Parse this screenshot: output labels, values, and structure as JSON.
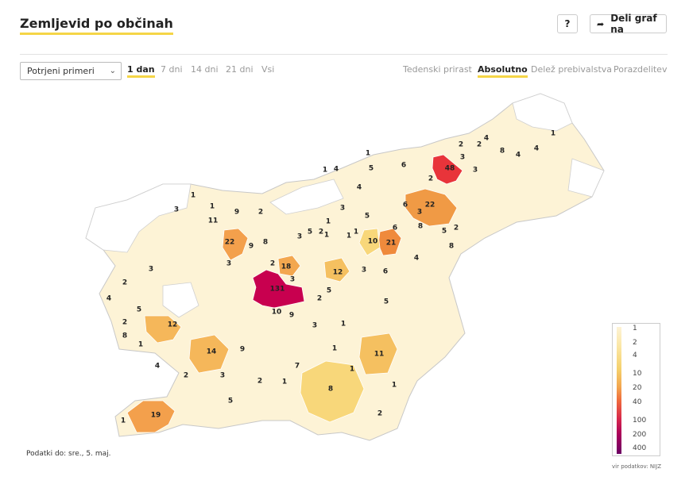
{
  "header": {
    "title": "Zemljevid po občinah",
    "help_label": "?",
    "share_label": "Deli graf na"
  },
  "controls": {
    "select_value": "Potrjeni primeri",
    "time_tabs": [
      {
        "label": "1 dan",
        "active": true
      },
      {
        "label": "7 dni",
        "active": false
      },
      {
        "label": "14 dni",
        "active": false
      },
      {
        "label": "21 dni",
        "active": false
      },
      {
        "label": "Vsi",
        "active": false
      }
    ],
    "mode_tabs": [
      {
        "label": "Tedenski prirast",
        "active": false
      },
      {
        "label": "Absolutno",
        "active": true
      },
      {
        "label": "Delež prebivalstva",
        "active": false
      },
      {
        "label": "Porazdelitev",
        "active": false
      }
    ]
  },
  "legend": {
    "labels": [
      "1",
      "2",
      "4",
      "10",
      "20",
      "40",
      "100",
      "200",
      "400"
    ]
  },
  "colors": {
    "accent": "#f5d547",
    "scale": [
      "#fdf3d6",
      "#fbe7a6",
      "#f5d16d",
      "#f3a74f",
      "#ef6a3c",
      "#d8294b",
      "#a8005a",
      "#6b0063"
    ]
  },
  "map_values": [
    "1",
    "1",
    "3",
    "11",
    "9",
    "2",
    "22",
    "9",
    "8",
    "3",
    "2",
    "3",
    "4",
    "2",
    "5",
    "2",
    "8",
    "12",
    "1",
    "14",
    "9",
    "4",
    "2",
    "3",
    "2",
    "1",
    "5",
    "19",
    "1",
    "131",
    "18",
    "3",
    "10",
    "9",
    "12",
    "2",
    "3",
    "5",
    "1",
    "1",
    "7",
    "8",
    "1",
    "2",
    "11",
    "1",
    "48",
    "2",
    "3",
    "4",
    "8",
    "4",
    "1",
    "4",
    "22",
    "6",
    "2",
    "6",
    "3",
    "5",
    "1",
    "10",
    "6",
    "21",
    "8",
    "5",
    "2",
    "8",
    "4",
    "3",
    "6",
    "5",
    "5",
    "4",
    "1",
    "1",
    "1",
    "1",
    "3",
    "2",
    "1",
    "3",
    "5",
    "4",
    "3",
    "2"
  ],
  "footer": {
    "data_as_of": "Podatki do: sre., 5. maj.",
    "source": "vir podatkov: NIJZ"
  }
}
